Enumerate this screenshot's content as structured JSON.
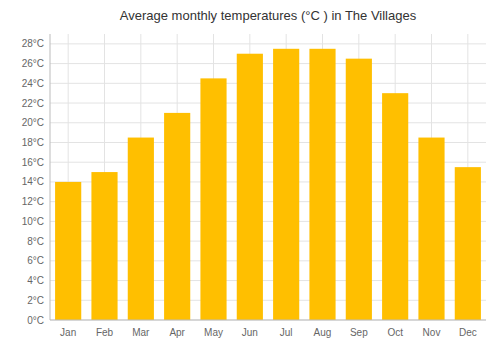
{
  "chart_data": {
    "type": "bar",
    "title": "Average monthly temperatures (°C ) in The Villages",
    "categories": [
      "Jan",
      "Feb",
      "Mar",
      "Apr",
      "May",
      "Jun",
      "Jul",
      "Aug",
      "Sep",
      "Oct",
      "Nov",
      "Dec"
    ],
    "values": [
      14,
      15,
      18.5,
      21,
      24.5,
      27,
      27.5,
      27.5,
      26.5,
      23,
      18.5,
      15.5
    ],
    "color": "#FFBF00",
    "ylim": [
      0,
      29
    ],
    "yticks": [
      {
        "value": 0,
        "label": "0°C"
      },
      {
        "value": 2,
        "label": "2°C"
      },
      {
        "value": 4,
        "label": "4°C"
      },
      {
        "value": 6,
        "label": "6°C"
      },
      {
        "value": 8,
        "label": "8°C"
      },
      {
        "value": 10,
        "label": "10°C"
      },
      {
        "value": 12,
        "label": "12°C"
      },
      {
        "value": 14,
        "label": "14°C"
      },
      {
        "value": 16,
        "label": "16°C"
      },
      {
        "value": 18,
        "label": "18°C"
      },
      {
        "value": 20,
        "label": "20°C"
      },
      {
        "value": 22,
        "label": "22°C"
      },
      {
        "value": 24,
        "label": "24°C"
      },
      {
        "value": 26,
        "label": "26°C"
      },
      {
        "value": 28,
        "label": "28°C"
      }
    ],
    "grid": true
  }
}
